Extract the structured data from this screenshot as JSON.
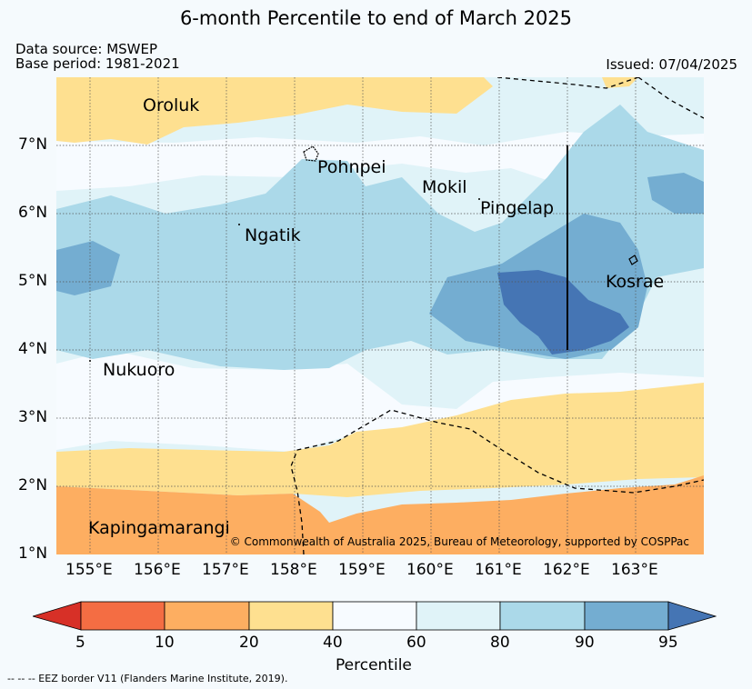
{
  "title": "6-month Percentile to end of March 2025",
  "data_source": "Data source: MSWEP",
  "base_period": "Base period: 1981-2021",
  "issued": "Issued: 07/04/2025",
  "credit": "© Commonwealth of Australia 2025, Bureau of Meteorology, supported by COSPPac",
  "footnote": "-- -- -- EEZ border V11 (Flanders Marine Institute, 2019).",
  "map": {
    "lon_range": [
      154.5,
      164.0
    ],
    "lat_range": [
      1.0,
      8.0
    ],
    "lon_ticks": [
      "155°E",
      "156°E",
      "157°E",
      "158°E",
      "159°E",
      "160°E",
      "161°E",
      "162°E",
      "163°E"
    ],
    "lat_ticks": [
      "1°N",
      "2°N",
      "3°N",
      "4°N",
      "5°N",
      "6°N",
      "7°N"
    ],
    "places": [
      "Oroluk",
      "Pohnpei",
      "Mokil",
      "Pingelap",
      "Ngatik",
      "Kosrae",
      "Nukuoro",
      "Kapingamarangi"
    ]
  },
  "colorbar": {
    "title": "Percentile",
    "ticks": [
      "5",
      "10",
      "20",
      "40",
      "60",
      "80",
      "90",
      "95"
    ],
    "colors": [
      "#d73027",
      "#f46d43",
      "#fdae61",
      "#fee090",
      "#f7fbff",
      "#e0f3f8",
      "#abd9e9",
      "#74add1",
      "#4575b4"
    ]
  }
}
